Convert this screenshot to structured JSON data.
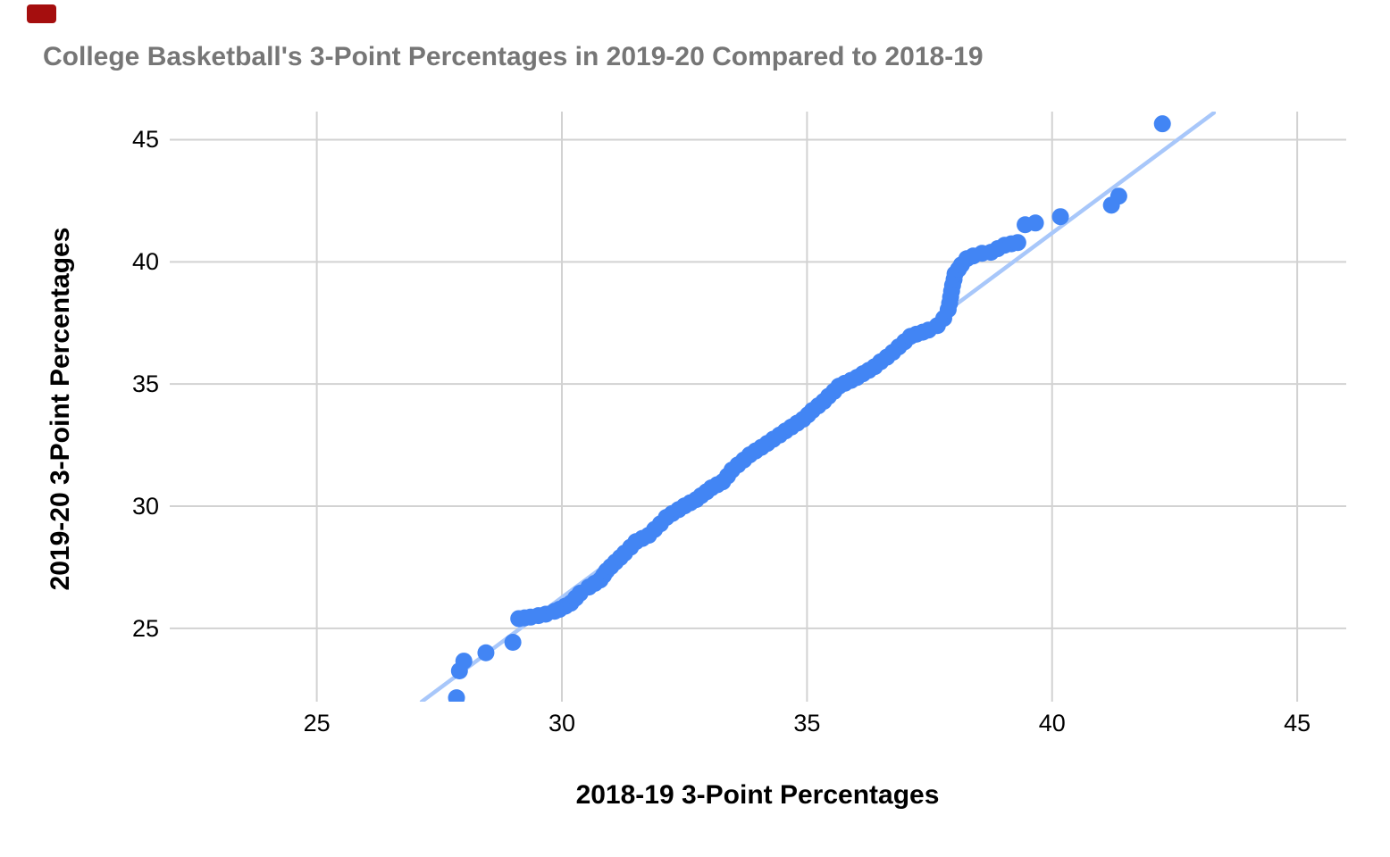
{
  "page": {
    "red_marker": {
      "color": "#a50e0e"
    }
  },
  "chart_data": {
    "type": "scatter",
    "title": "College Basketball's 3-Point Percentages in 2019-20 Compared to 2018-19",
    "title_color": "#767676",
    "xlabel": "2018-19 3-Point Percentages",
    "ylabel": "2019-20 3-Point Percentages",
    "xlim": [
      22,
      46
    ],
    "ylim": [
      22,
      46.15
    ],
    "xticks": [
      25,
      30,
      35,
      40,
      45
    ],
    "yticks": [
      25,
      30,
      35,
      40,
      45
    ],
    "grid": true,
    "legend": false,
    "grid_color": "#d2d2d2",
    "point_color": "#4285f4",
    "point_radius": 9.5,
    "trendline_color": "#a8c7fa",
    "trendline_width": 4.5,
    "trendline": {
      "x1": 27.14,
      "y1": 22.0,
      "x2": 43.3,
      "y2": 46.1
    },
    "points": [
      [
        27.85,
        22.16
      ],
      [
        27.91,
        23.26
      ],
      [
        28.0,
        23.66
      ],
      [
        28.45,
        24.0
      ],
      [
        29.0,
        24.43
      ],
      [
        29.12,
        25.4
      ],
      [
        29.24,
        25.43
      ],
      [
        29.36,
        25.46
      ],
      [
        29.52,
        25.52
      ],
      [
        29.67,
        25.58
      ],
      [
        29.85,
        25.7
      ],
      [
        29.95,
        25.78
      ],
      [
        30.07,
        25.91
      ],
      [
        30.18,
        26.03
      ],
      [
        30.28,
        26.24
      ],
      [
        30.37,
        26.44
      ],
      [
        30.55,
        26.69
      ],
      [
        30.67,
        26.84
      ],
      [
        30.78,
        26.98
      ],
      [
        30.85,
        27.17
      ],
      [
        30.91,
        27.35
      ],
      [
        31.0,
        27.53
      ],
      [
        31.09,
        27.71
      ],
      [
        31.19,
        27.9
      ],
      [
        31.28,
        28.08
      ],
      [
        31.4,
        28.32
      ],
      [
        31.51,
        28.55
      ],
      [
        31.64,
        28.68
      ],
      [
        31.77,
        28.81
      ],
      [
        31.89,
        29.05
      ],
      [
        32.01,
        29.28
      ],
      [
        32.13,
        29.54
      ],
      [
        32.25,
        29.7
      ],
      [
        32.38,
        29.86
      ],
      [
        32.5,
        30.01
      ],
      [
        32.62,
        30.14
      ],
      [
        32.74,
        30.27
      ],
      [
        32.84,
        30.43
      ],
      [
        32.95,
        30.59
      ],
      [
        33.05,
        30.75
      ],
      [
        33.17,
        30.88
      ],
      [
        33.28,
        31.0
      ],
      [
        33.38,
        31.24
      ],
      [
        33.47,
        31.48
      ],
      [
        33.59,
        31.69
      ],
      [
        33.71,
        31.89
      ],
      [
        33.83,
        32.1
      ],
      [
        33.95,
        32.26
      ],
      [
        34.07,
        32.41
      ],
      [
        34.19,
        32.57
      ],
      [
        34.31,
        32.74
      ],
      [
        34.44,
        32.91
      ],
      [
        34.56,
        33.08
      ],
      [
        34.68,
        33.24
      ],
      [
        34.8,
        33.4
      ],
      [
        34.92,
        33.56
      ],
      [
        35.02,
        33.74
      ],
      [
        35.11,
        33.92
      ],
      [
        35.23,
        34.11
      ],
      [
        35.34,
        34.29
      ],
      [
        35.44,
        34.5
      ],
      [
        35.55,
        34.7
      ],
      [
        35.65,
        34.91
      ],
      [
        35.77,
        35.03
      ],
      [
        35.9,
        35.15
      ],
      [
        36.02,
        35.27
      ],
      [
        36.14,
        35.42
      ],
      [
        36.26,
        35.56
      ],
      [
        36.38,
        35.71
      ],
      [
        36.5,
        35.91
      ],
      [
        36.63,
        36.1
      ],
      [
        36.75,
        36.3
      ],
      [
        36.87,
        36.52
      ],
      [
        36.99,
        36.73
      ],
      [
        37.11,
        36.95
      ],
      [
        37.23,
        37.04
      ],
      [
        37.36,
        37.12
      ],
      [
        37.48,
        37.21
      ],
      [
        37.66,
        37.39
      ],
      [
        37.79,
        37.69
      ],
      [
        37.88,
        38.05
      ],
      [
        37.91,
        38.31
      ],
      [
        37.93,
        38.56
      ],
      [
        37.95,
        38.8
      ],
      [
        37.97,
        39.04
      ],
      [
        38.0,
        39.28
      ],
      [
        38.02,
        39.51
      ],
      [
        38.09,
        39.7
      ],
      [
        38.15,
        39.88
      ],
      [
        38.26,
        40.13
      ],
      [
        38.39,
        40.24
      ],
      [
        38.57,
        40.35
      ],
      [
        38.75,
        40.39
      ],
      [
        38.89,
        40.54
      ],
      [
        39.03,
        40.68
      ],
      [
        39.17,
        40.74
      ],
      [
        39.3,
        40.79
      ],
      [
        39.45,
        41.52
      ],
      [
        39.66,
        41.59
      ],
      [
        40.17,
        41.85
      ],
      [
        41.21,
        42.32
      ],
      [
        41.36,
        42.69
      ],
      [
        42.25,
        45.65
      ]
    ]
  }
}
